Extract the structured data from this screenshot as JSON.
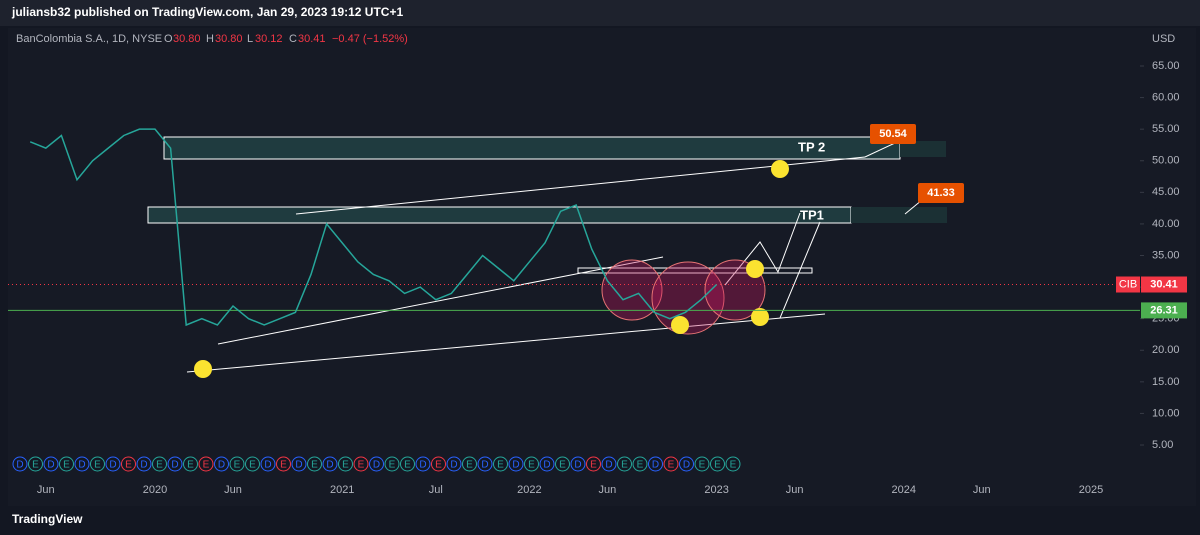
{
  "header": {
    "publisher": "juliansb32 published on TradingView.com, Jan 29, 2023 19:12 UTC+1"
  },
  "legend": {
    "symbol": "BanColombia S.A., 1D, NYSE",
    "o_label": "O",
    "open": "30.80",
    "h_label": "H",
    "high": "30.80",
    "l_label": "L",
    "low": "30.12",
    "c_label": "C",
    "close": "30.41",
    "change": "−0.47 (−1.52%)"
  },
  "chart_data": {
    "type": "line",
    "currency": "USD",
    "x": [
      "2019-05",
      "2019-06",
      "2019-07",
      "2019-08",
      "2019-09",
      "2019-10",
      "2019-11",
      "2019-12",
      "2020-01",
      "2020-02",
      "2020-03",
      "2020-04",
      "2020-05",
      "2020-06",
      "2020-07",
      "2020-08",
      "2020-09",
      "2020-10",
      "2020-11",
      "2020-12",
      "2021-01",
      "2021-02",
      "2021-03",
      "2021-04",
      "2021-05",
      "2021-06",
      "2021-07",
      "2021-08",
      "2021-09",
      "2021-10",
      "2021-11",
      "2021-12",
      "2022-01",
      "2022-02",
      "2022-03",
      "2022-04",
      "2022-05",
      "2022-06",
      "2022-07",
      "2022-08",
      "2022-09",
      "2022-10",
      "2022-11",
      "2022-12",
      "2023-01"
    ],
    "series": [
      {
        "name": "CIB",
        "color": "#26a69a",
        "values": [
          53,
          52,
          54,
          47,
          50,
          52,
          54,
          55,
          55,
          52,
          24,
          25,
          24,
          27,
          25,
          24,
          25,
          26,
          32,
          40,
          37,
          34,
          32,
          31,
          29,
          30,
          28,
          29,
          32,
          35,
          33,
          31,
          34,
          37,
          42,
          43,
          36,
          31,
          28,
          29,
          26,
          25,
          26,
          28,
          30.41
        ]
      }
    ],
    "ylim": [
      0,
      70
    ],
    "yticks": [
      {
        "value": 5,
        "label": "5.00"
      },
      {
        "value": 10,
        "label": "10.00"
      },
      {
        "value": 15,
        "label": "15.00"
      },
      {
        "value": 20,
        "label": "20.00"
      },
      {
        "value": 25,
        "label": "25.00"
      },
      {
        "value": 30,
        "label": "30.00"
      },
      {
        "value": 35,
        "label": "35.00"
      },
      {
        "value": 40,
        "label": "40.00"
      },
      {
        "value": 45,
        "label": "45.00"
      },
      {
        "value": 50,
        "label": "50.00"
      },
      {
        "value": 55,
        "label": "55.00"
      },
      {
        "value": 60,
        "label": "60.00"
      },
      {
        "value": 65,
        "label": "65.00"
      }
    ],
    "xticks": [
      {
        "value": "2019-06",
        "label": "Jun"
      },
      {
        "value": "2020-01",
        "label": "2020"
      },
      {
        "value": "2020-06",
        "label": "Jun"
      },
      {
        "value": "2021-01",
        "label": "2021"
      },
      {
        "value": "2021-07",
        "label": "Jul"
      },
      {
        "value": "2022-01",
        "label": "2022"
      },
      {
        "value": "2022-06",
        "label": "Jun"
      },
      {
        "value": "2023-01",
        "label": "2023"
      },
      {
        "value": "2023-06",
        "label": "Jun"
      },
      {
        "value": "2024-01",
        "label": "2024"
      },
      {
        "value": "2024-06",
        "label": "Jun"
      },
      {
        "value": "2025-01",
        "label": "2025"
      }
    ],
    "last_price": {
      "symbol": "CIB",
      "value": 30.41,
      "label": "30.41"
    },
    "support_line": {
      "value": 26.31,
      "label": "26.31"
    },
    "annotations": {
      "tp2": "TP 2",
      "tp1": "TP1",
      "target2": "50.54",
      "target1": "41.33"
    },
    "events": [
      "D",
      "E",
      "D",
      "E",
      "D",
      "E",
      "D",
      "E",
      "D",
      "E",
      "D",
      "E",
      "E",
      "D",
      "E",
      "E",
      "D",
      "E",
      "D",
      "E",
      "D",
      "E",
      "E",
      "D",
      "E",
      "E",
      "D",
      "E",
      "D",
      "E",
      "D",
      "E",
      "D",
      "E",
      "D",
      "E",
      "D",
      "E",
      "D",
      "E",
      "E",
      "D",
      "E",
      "D",
      "E",
      "E",
      "E"
    ]
  },
  "footer": {
    "brand": "TradingView"
  }
}
